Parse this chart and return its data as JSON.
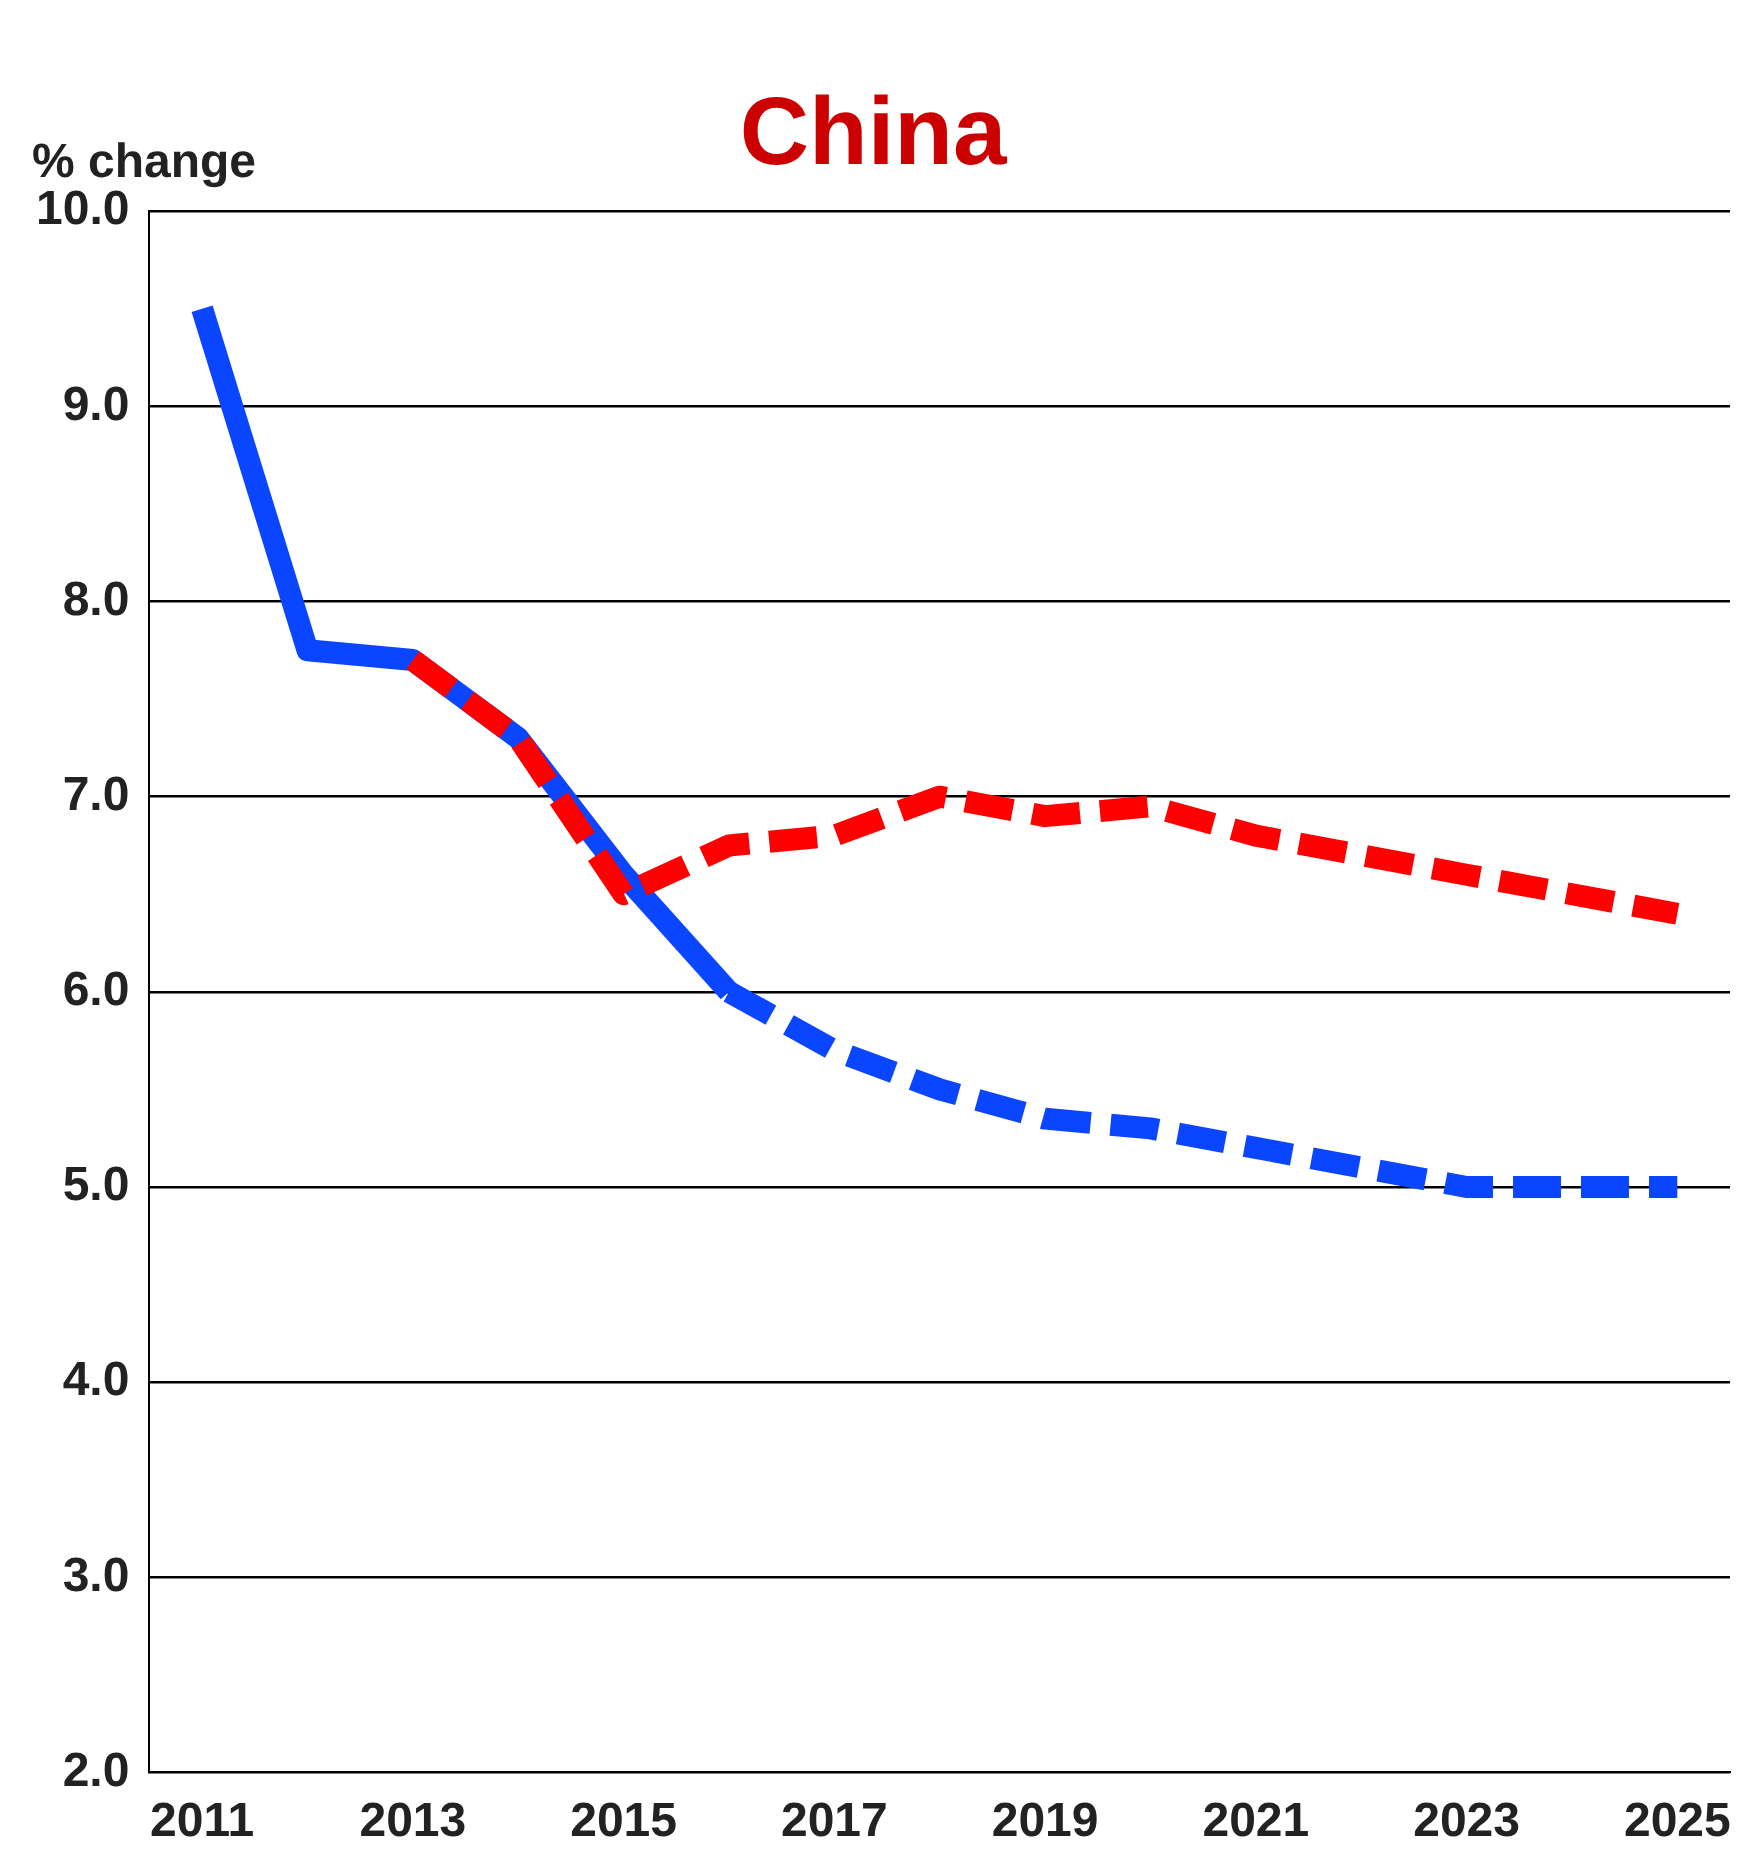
{
  "chart_data": {
    "type": "line",
    "title": "China",
    "ylabel": "% change",
    "categories": [
      "2011",
      null,
      "2013",
      null,
      "2015",
      null,
      "2017",
      null,
      "2019",
      null,
      "2021",
      null,
      "2023",
      null,
      "2025"
    ],
    "ylim": [
      2,
      10
    ],
    "yticks": [
      {
        "value": 2,
        "label": "2.0"
      },
      {
        "value": 3,
        "label": "3.0"
      },
      {
        "value": 4,
        "label": "4.0"
      },
      {
        "value": 5,
        "label": "5.0"
      },
      {
        "value": 6,
        "label": "6.0"
      },
      {
        "value": 7,
        "label": "7.0"
      },
      {
        "value": 8,
        "label": "8.0"
      },
      {
        "value": 9,
        "label": "9.0"
      },
      {
        "value": 10,
        "label": "10.0"
      }
    ],
    "grid": "y",
    "legend": false,
    "marker": "none",
    "series": [
      {
        "color": "#0a46ff",
        "line_style": "solid",
        "values": [
          9.5,
          7.75,
          7.7,
          7.3,
          6.6,
          6.0,
          null,
          null,
          null,
          null,
          null,
          null,
          null,
          null,
          null
        ]
      },
      {
        "color": "#0a46ff",
        "line_style": "dashed",
        "values": [
          null,
          null,
          null,
          null,
          null,
          6.0,
          5.7,
          5.5,
          5.35,
          5.3,
          5.2,
          5.1,
          5.0,
          5.0,
          5.0
        ]
      },
      {
        "color": "#ff0000",
        "line_style": "dashed",
        "values": [
          null,
          null,
          7.7,
          7.3,
          6.5,
          6.75,
          6.8,
          7.0,
          6.9,
          6.95,
          6.8,
          6.7,
          6.6,
          6.5,
          6.4
        ]
      }
    ]
  }
}
